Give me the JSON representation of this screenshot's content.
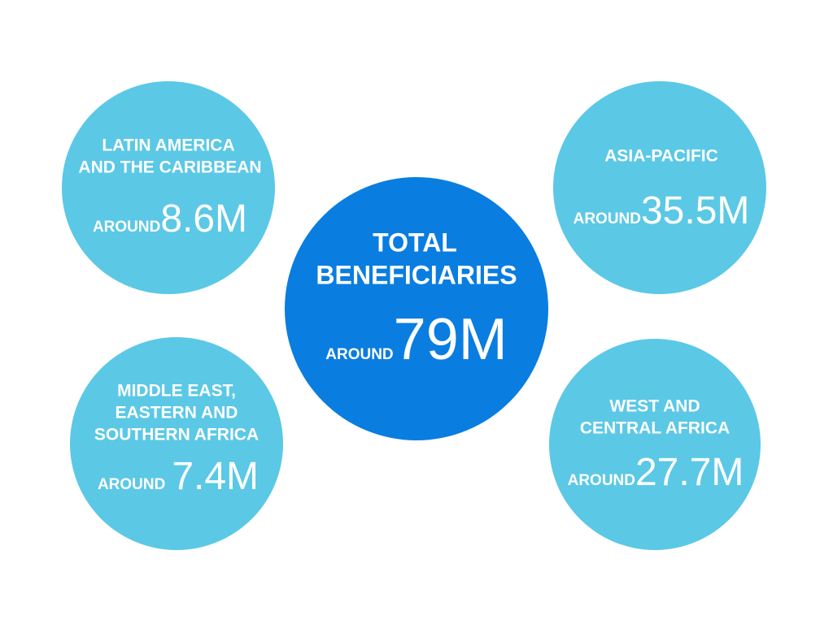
{
  "center": {
    "title_lines": [
      "TOTAL",
      "BENEFICIARIES"
    ],
    "prefix": "AROUND",
    "value": "79M"
  },
  "regions": [
    {
      "name_lines": [
        "LATIN AMERICA",
        "AND THE CARIBBEAN"
      ],
      "prefix": "AROUND",
      "value": "8.6M"
    },
    {
      "name_lines": [
        "ASIA-PACIFIC"
      ],
      "prefix": "AROUND",
      "value": "35.5M"
    },
    {
      "name_lines": [
        "MIDDLE EAST,",
        "EASTERN AND",
        "SOUTHERN AFRICA"
      ],
      "prefix": "AROUND",
      "value": "7.4M"
    },
    {
      "name_lines": [
        "WEST AND",
        "CENTRAL AFRICA"
      ],
      "prefix": "AROUND",
      "value": "27.7M"
    }
  ]
}
